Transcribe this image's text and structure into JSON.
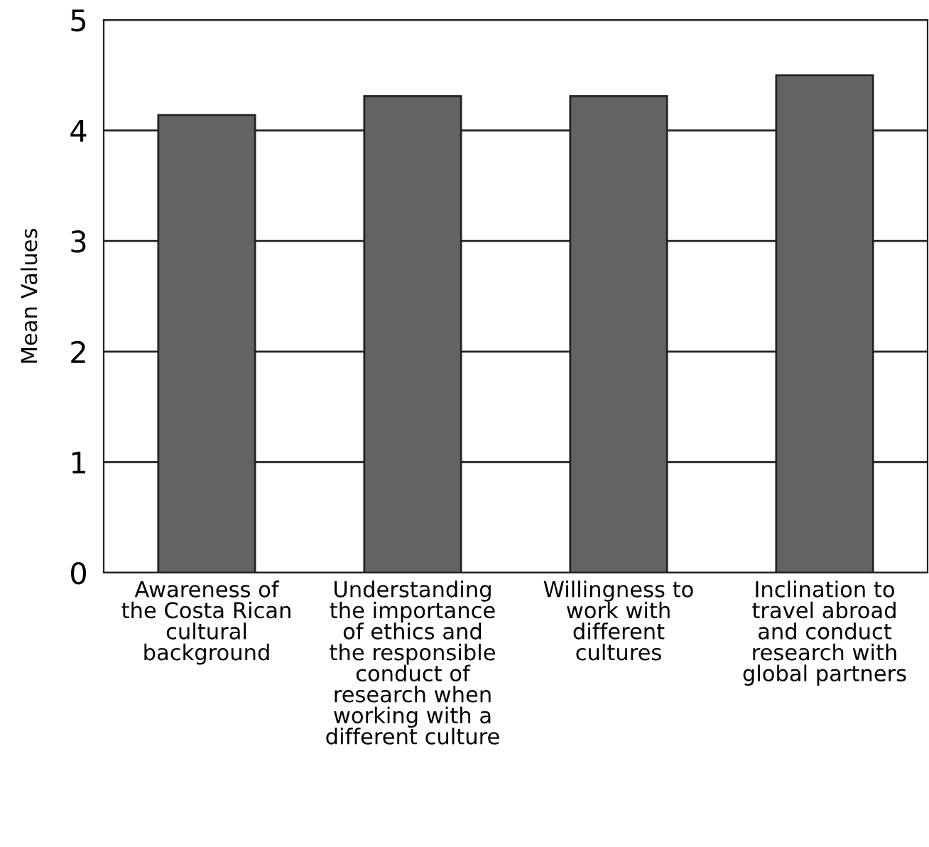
{
  "chart_data": {
    "type": "bar",
    "ylabel": "Mean Values",
    "categories": [
      "Awareness of\nthe Costa Rican\ncultural\nbackground",
      "Understanding\nthe importance\nof ethics and\nthe responsible\nconduct of\nresearch when\nworking with a\ndifferent culture",
      "Willingness to\nwork with\ndifferent\ncultures",
      "Inclination to\ntravel abroad\nand conduct\nresearch with\nglobal partners"
    ],
    "values": [
      4.14,
      4.31,
      4.31,
      4.5
    ],
    "color": "#636365",
    "ylim": [
      0,
      5
    ],
    "yticks": [
      0,
      1,
      2,
      3,
      4,
      5
    ],
    "grid": "y"
  }
}
